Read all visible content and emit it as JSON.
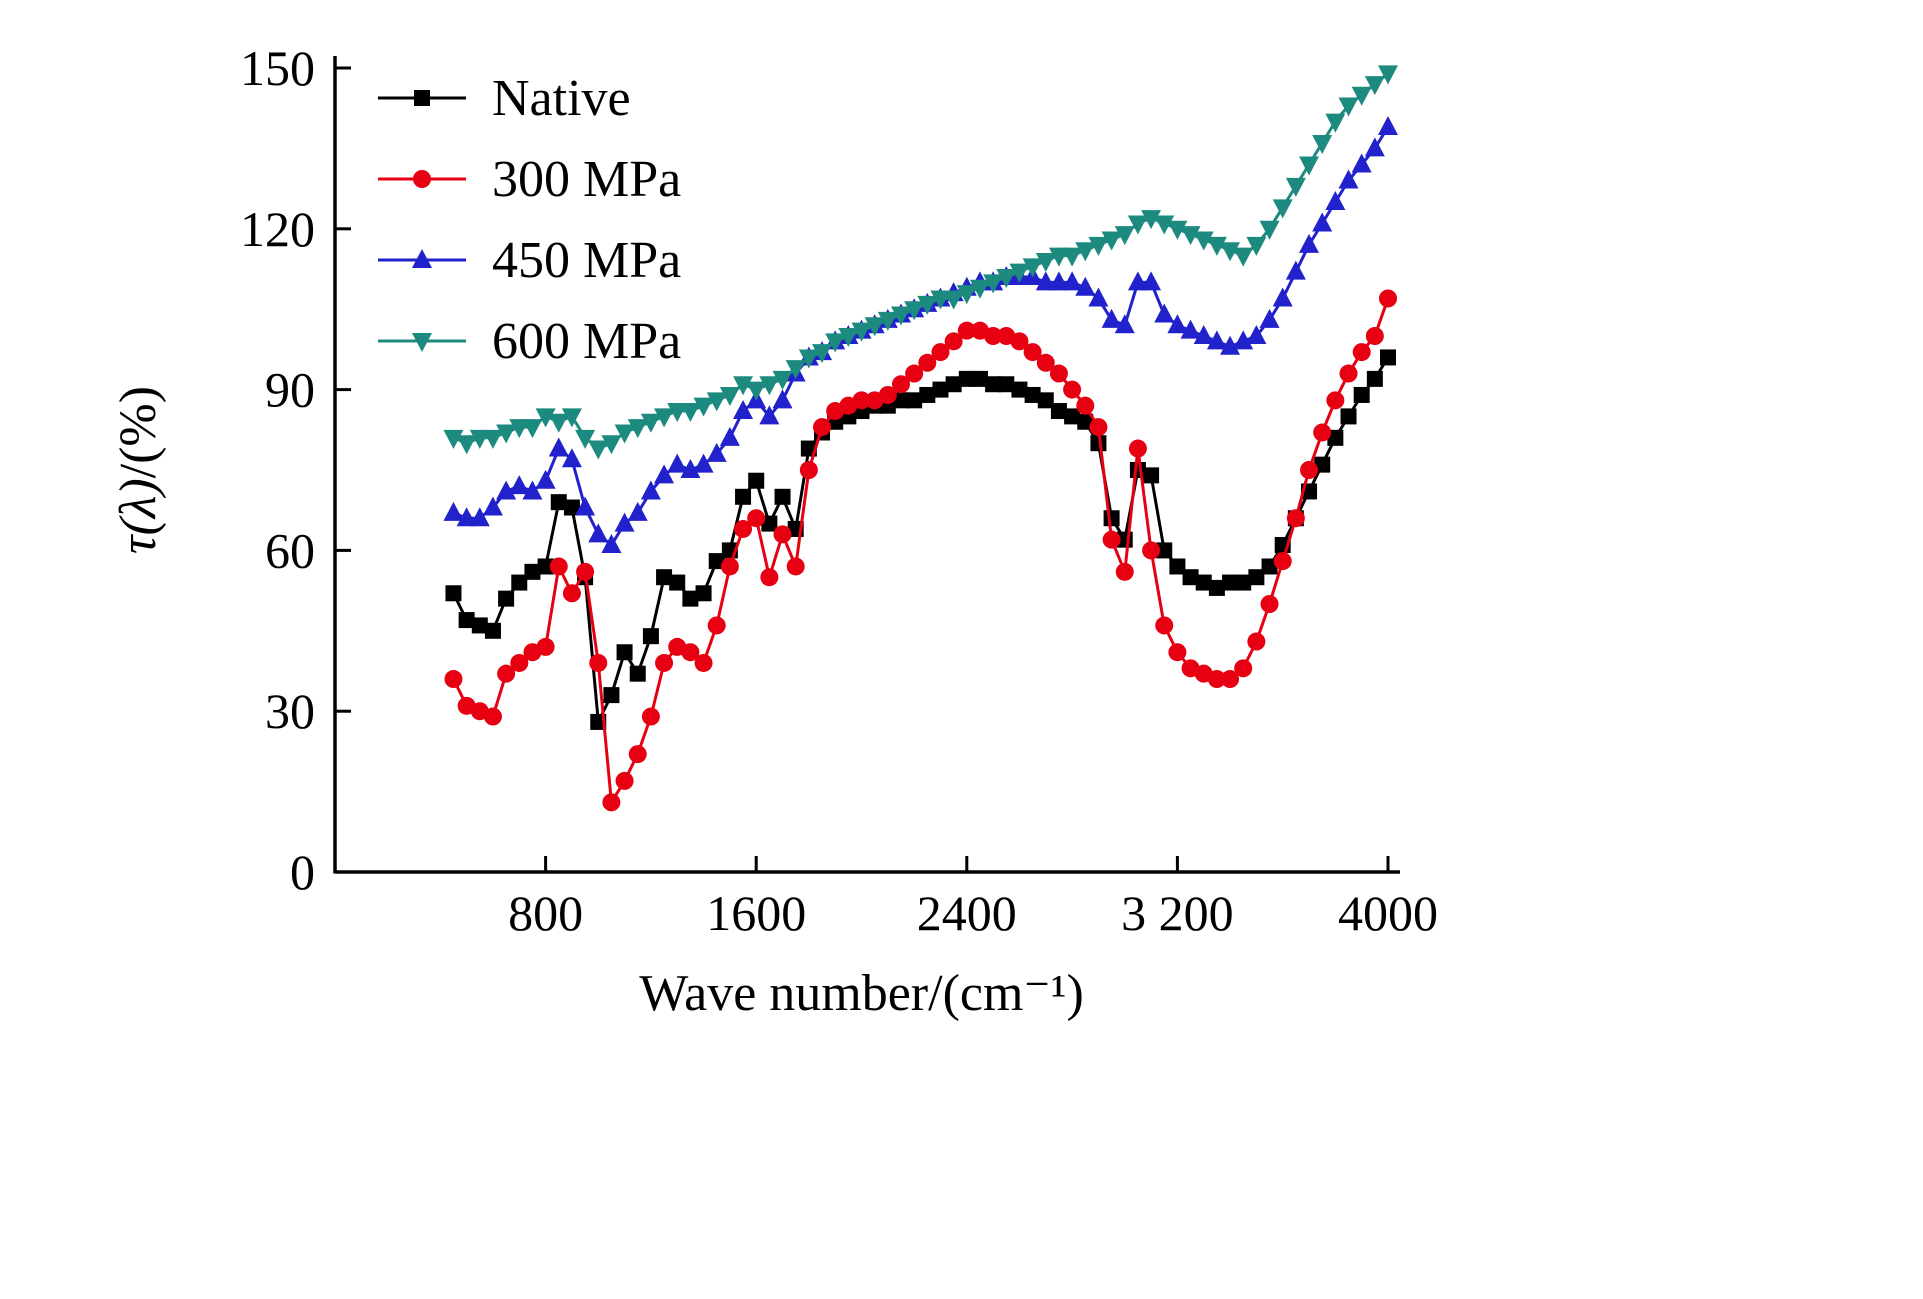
{
  "figure": {
    "background": "#ffffff",
    "axis_color": "#000000"
  },
  "chart_data": {
    "type": "line",
    "title": "",
    "xlabel": "Wave number/(cm⁻¹)",
    "ylabel": "τ(λ)/(%)",
    "xlim": [
      0,
      4000
    ],
    "ylim": [
      0,
      150
    ],
    "xticks": [
      800,
      1600,
      2400,
      3200,
      4000
    ],
    "xticklabels": [
      "800",
      "1600",
      "2400",
      "3 200",
      "4000"
    ],
    "yticks": [
      0,
      30,
      60,
      90,
      120,
      150
    ],
    "yticklabels": [
      "0",
      "30",
      "60",
      "90",
      "120",
      "150"
    ],
    "grid": false,
    "legend_position": "top-left",
    "x": [
      450,
      500,
      550,
      600,
      650,
      700,
      750,
      800,
      850,
      900,
      950,
      1000,
      1050,
      1100,
      1150,
      1200,
      1250,
      1300,
      1350,
      1400,
      1450,
      1500,
      1550,
      1600,
      1650,
      1700,
      1750,
      1800,
      1850,
      1900,
      1950,
      2000,
      2050,
      2100,
      2150,
      2200,
      2250,
      2300,
      2350,
      2400,
      2450,
      2500,
      2550,
      2600,
      2650,
      2700,
      2750,
      2800,
      2850,
      2900,
      2950,
      3000,
      3050,
      3100,
      3150,
      3200,
      3250,
      3300,
      3350,
      3400,
      3450,
      3500,
      3550,
      3600,
      3650,
      3700,
      3750,
      3800,
      3850,
      3900,
      3950,
      4000
    ],
    "series": [
      {
        "name": "Native",
        "color": "#000000",
        "marker": "square",
        "values": [
          52,
          47,
          46,
          45,
          51,
          54,
          56,
          57,
          69,
          68,
          55,
          28,
          33,
          41,
          37,
          44,
          55,
          54,
          51,
          52,
          58,
          60,
          70,
          73,
          65,
          70,
          64,
          79,
          82,
          84,
          85,
          86,
          87,
          87,
          88,
          88,
          89,
          90,
          91,
          92,
          92,
          91,
          91,
          90,
          89,
          88,
          86,
          85,
          84,
          80,
          66,
          62,
          75,
          74,
          60,
          57,
          55,
          54,
          53,
          54,
          54,
          55,
          57,
          61,
          66,
          71,
          76,
          81,
          85,
          89,
          92,
          96
        ]
      },
      {
        "name": "300 MPa",
        "color": "#e60012",
        "marker": "circle",
        "values": [
          36,
          31,
          30,
          29,
          37,
          39,
          41,
          42,
          57,
          52,
          56,
          39,
          13,
          17,
          22,
          29,
          39,
          42,
          41,
          39,
          46,
          57,
          64,
          66,
          55,
          63,
          57,
          75,
          83,
          86,
          87,
          88,
          88,
          89,
          91,
          93,
          95,
          97,
          99,
          101,
          101,
          100,
          100,
          99,
          97,
          95,
          93,
          90,
          87,
          83,
          62,
          56,
          79,
          60,
          46,
          41,
          38,
          37,
          36,
          36,
          38,
          43,
          50,
          58,
          66,
          75,
          82,
          88,
          93,
          97,
          100,
          107
        ]
      },
      {
        "name": "450 MPa",
        "color": "#2222cc",
        "marker": "triangle-up",
        "values": [
          67,
          66,
          66,
          68,
          71,
          72,
          71,
          73,
          79,
          77,
          68,
          63,
          61,
          65,
          67,
          71,
          74,
          76,
          75,
          76,
          78,
          81,
          86,
          88,
          85,
          88,
          93,
          96,
          97,
          99,
          100,
          101,
          102,
          103,
          104,
          105,
          106,
          107,
          108,
          109,
          110,
          110,
          111,
          111,
          111,
          110,
          110,
          110,
          109,
          107,
          103,
          102,
          110,
          110,
          104,
          102,
          101,
          100,
          99,
          98,
          99,
          100,
          103,
          107,
          112,
          117,
          121,
          125,
          129,
          132,
          135,
          139
        ]
      },
      {
        "name": "600 MPa",
        "color": "#1d8a80",
        "marker": "triangle-down",
        "values": [
          81,
          80,
          81,
          81,
          82,
          83,
          83,
          85,
          84,
          85,
          81,
          79,
          80,
          82,
          83,
          84,
          85,
          86,
          86,
          87,
          88,
          89,
          91,
          90,
          91,
          92,
          94,
          96,
          97,
          99,
          100,
          101,
          102,
          103,
          104,
          105,
          106,
          107,
          107,
          108,
          109,
          110,
          111,
          112,
          113,
          114,
          115,
          115,
          116,
          117,
          118,
          119,
          121,
          122,
          121,
          120,
          119,
          118,
          117,
          116,
          115,
          117,
          120,
          124,
          128,
          132,
          136,
          140,
          143,
          145,
          147,
          149
        ]
      }
    ]
  }
}
